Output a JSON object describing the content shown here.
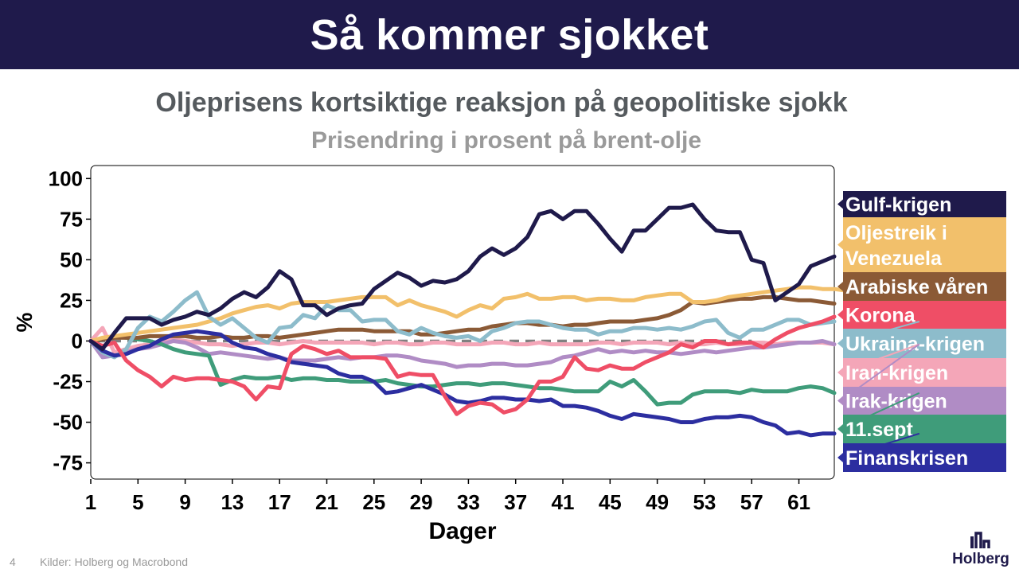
{
  "header": {
    "title": "Så kommer sjokket"
  },
  "footer": {
    "page_number": "4",
    "source": "Kilder: Holberg og Macrobond"
  },
  "logo": {
    "text": "Holberg"
  },
  "chart_data": {
    "type": "line",
    "title": "Oljeprisens kortsiktige reaksjon på geopolitiske sjokk",
    "subtitle": "Prisendring i prosent på brent-olje",
    "xlabel": "Dager",
    "ylabel": "%",
    "xlim": [
      1,
      64
    ],
    "ylim": [
      -85,
      108
    ],
    "xticks": [
      1,
      5,
      9,
      13,
      17,
      21,
      25,
      29,
      33,
      37,
      41,
      45,
      49,
      53,
      57,
      61
    ],
    "yticks": [
      100,
      75,
      50,
      25,
      0,
      -25,
      -50,
      -75
    ],
    "ytick_labels": [
      "100",
      "75",
      "50",
      "25",
      "0",
      "-25",
      "-50",
      "-75"
    ],
    "zero_line": {
      "style": "dashed",
      "color": "#808080"
    },
    "grid": false,
    "legend_position": "right",
    "series": [
      {
        "name": "Oljestreik i Venezuela",
        "color": "#f2c06b",
        "values": [
          0,
          2,
          3,
          4,
          5,
          6,
          7,
          8,
          9,
          10,
          12,
          14,
          17,
          19,
          21,
          22,
          20,
          23,
          24,
          24,
          24,
          25,
          26,
          27,
          27,
          27,
          22,
          25,
          22,
          20,
          18,
          15,
          19,
          22,
          20,
          26,
          27,
          29,
          26,
          26,
          27,
          27,
          25,
          26,
          26,
          25,
          25,
          27,
          28,
          29,
          29,
          24,
          24,
          25,
          27,
          28,
          29,
          30,
          31,
          32,
          33,
          33,
          32,
          32,
          31,
          28,
          30,
          32,
          33,
          34,
          34
        ]
      },
      {
        "name": "Gulf-krigen",
        "color": "#1f1a4b",
        "values": [
          0,
          -5,
          5,
          14,
          14,
          14,
          10,
          13,
          15,
          18,
          16,
          20,
          26,
          30,
          27,
          33,
          43,
          38,
          22,
          22,
          16,
          20,
          22,
          23,
          32,
          37,
          42,
          39,
          34,
          37,
          36,
          38,
          43,
          52,
          57,
          53,
          57,
          64,
          78,
          80,
          75,
          80,
          80,
          72,
          63,
          55,
          68,
          68,
          75,
          82,
          82,
          84,
          75,
          68,
          67,
          67,
          50,
          48,
          25,
          30,
          35,
          46,
          49,
          52
        ]
      },
      {
        "name": "Arabiske våren",
        "color": "#8b5a36",
        "values": [
          0,
          1,
          2,
          2,
          2,
          3,
          3,
          3,
          3,
          2,
          2,
          3,
          2,
          2,
          3,
          3,
          2,
          3,
          4,
          5,
          6,
          7,
          7,
          7,
          6,
          6,
          6,
          6,
          4,
          4,
          5,
          6,
          7,
          7,
          9,
          10,
          11,
          11,
          10,
          10,
          9,
          10,
          10,
          11,
          12,
          12,
          12,
          13,
          14,
          16,
          19,
          24,
          23,
          24,
          25,
          26,
          26,
          27,
          27,
          26,
          25,
          25,
          24,
          23
        ]
      },
      {
        "name": "Korona",
        "color": "#ef4e66",
        "values": [
          0,
          -3,
          -1,
          -12,
          -18,
          -22,
          -28,
          -22,
          -24,
          -23,
          -23,
          -24,
          -25,
          -28,
          -36,
          -28,
          -29,
          -8,
          -3,
          -5,
          -8,
          -6,
          -10,
          -10,
          -10,
          -11,
          -22,
          -20,
          -21,
          -21,
          -34,
          -45,
          -40,
          -38,
          -39,
          -44,
          -42,
          -36,
          -25,
          -25,
          -22,
          -10,
          -17,
          -18,
          -15,
          -17,
          -17,
          -13,
          -10,
          -7,
          -2,
          -4,
          0,
          0,
          -2,
          -1,
          -1,
          -4,
          1,
          5,
          8,
          10,
          12,
          15
        ]
      },
      {
        "name": "Ukraina-krigen",
        "color": "#8dbccb",
        "values": [
          0,
          -7,
          -10,
          -5,
          8,
          15,
          12,
          18,
          25,
          30,
          15,
          10,
          14,
          8,
          2,
          -1,
          8,
          9,
          16,
          14,
          22,
          19,
          19,
          12,
          13,
          13,
          6,
          4,
          8,
          5,
          3,
          2,
          3,
          0,
          6,
          8,
          11,
          12,
          12,
          10,
          8,
          7,
          7,
          4,
          6,
          6,
          8,
          8,
          7,
          8,
          7,
          9,
          12,
          13,
          5,
          2,
          7,
          7,
          10,
          13,
          13,
          10,
          11,
          12
        ]
      },
      {
        "name": "Iran-krigen",
        "color": "#f4a6b8",
        "values": [
          0,
          8,
          -7,
          -5,
          -3,
          -2,
          0,
          1,
          0,
          -1,
          -2,
          -2,
          -3,
          -2,
          -1,
          -1,
          -2,
          -1,
          0,
          -1,
          -1,
          -1,
          -1,
          -1,
          -2,
          -1,
          -1,
          -2,
          -2,
          -1,
          -1,
          -2,
          -2,
          -2,
          -1,
          -1,
          -2,
          -2,
          -1,
          -2,
          -2,
          -2,
          -2,
          -1,
          -1,
          -2,
          -1,
          -1,
          -1,
          -2,
          -1,
          -2,
          -2,
          -1,
          -2,
          -2,
          -1,
          -1,
          -2,
          -1,
          -1,
          -1,
          -1,
          -2
        ]
      },
      {
        "name": "Irak-krigen",
        "color": "#b08cc5",
        "values": [
          0,
          -10,
          -9,
          -7,
          -5,
          -4,
          -2,
          0,
          -1,
          -4,
          -8,
          -7,
          -8,
          -9,
          -10,
          -11,
          -10,
          -12,
          -12,
          -12,
          -11,
          -10,
          -11,
          -10,
          -10,
          -9,
          -9,
          -10,
          -12,
          -13,
          -14,
          -16,
          -15,
          -15,
          -14,
          -14,
          -15,
          -15,
          -14,
          -13,
          -10,
          -9,
          -7,
          -5,
          -7,
          -6,
          -7,
          -6,
          -7,
          -7,
          -8,
          -7,
          -6,
          -7,
          -6,
          -5,
          -4,
          -4,
          -3,
          -2,
          -1,
          -1,
          0,
          -2
        ]
      },
      {
        "name": "11.sept",
        "color": "#3f9c7a",
        "values": [
          0,
          1,
          3,
          2,
          1,
          0,
          -2,
          -5,
          -7,
          -8,
          -9,
          -27,
          -24,
          -22,
          -23,
          -23,
          -22,
          -24,
          -23,
          -23,
          -24,
          -24,
          -25,
          -25,
          -25,
          -24,
          -26,
          -27,
          -28,
          -28,
          -27,
          -26,
          -26,
          -27,
          -26,
          -26,
          -27,
          -28,
          -29,
          -29,
          -30,
          -31,
          -31,
          -31,
          -25,
          -28,
          -24,
          -31,
          -39,
          -38,
          -38,
          -33,
          -31,
          -31,
          -31,
          -32,
          -30,
          -31,
          -31,
          -31,
          -29,
          -28,
          -29,
          -32
        ]
      },
      {
        "name": "Finanskrisen",
        "color": "#2c2ea0",
        "values": [
          0,
          -6,
          -9,
          -8,
          -5,
          -3,
          1,
          4,
          5,
          6,
          5,
          4,
          -1,
          -4,
          -5,
          -8,
          -10,
          -13,
          -14,
          -15,
          -16,
          -20,
          -22,
          -22,
          -25,
          -32,
          -31,
          -29,
          -27,
          -30,
          -33,
          -37,
          -38,
          -37,
          -35,
          -35,
          -36,
          -36,
          -37,
          -36,
          -40,
          -40,
          -41,
          -43,
          -46,
          -48,
          -45,
          -46,
          -47,
          -48,
          -50,
          -50,
          -48,
          -47,
          -47,
          -46,
          -47,
          -50,
          -52,
          -57,
          -56,
          -58,
          -57,
          -57
        ]
      }
    ]
  },
  "legend": {
    "entries": [
      {
        "label": "Gulf-krigen",
        "color": "#1f1a4b",
        "lines": [
          "Gulf-krigen"
        ]
      },
      {
        "label": "Oljestreik i Venezuela",
        "color": "#f2c06b",
        "lines": [
          "Oljestreik i",
          "Venezuela"
        ]
      },
      {
        "label": "Arabiske våren",
        "color": "#8b5a36",
        "lines": [
          "Arabiske våren"
        ]
      },
      {
        "label": "Korona",
        "color": "#ef4e66",
        "lines": [
          "Korona"
        ]
      },
      {
        "label": "Ukraina-krigen",
        "color": "#8dbccb",
        "lines": [
          "Ukraina-krigen"
        ]
      },
      {
        "label": "Iran-krigen",
        "color": "#f4a6b8",
        "lines": [
          "Iran-krigen"
        ]
      },
      {
        "label": "Irak-krigen",
        "color": "#b08cc5",
        "lines": [
          "Irak-krigen"
        ]
      },
      {
        "label": "11.sept",
        "color": "#3f9c7a",
        "lines": [
          "11.sept"
        ]
      },
      {
        "label": "Finanskrisen",
        "color": "#2c2ea0",
        "lines": [
          "Finanskrisen"
        ]
      }
    ]
  }
}
